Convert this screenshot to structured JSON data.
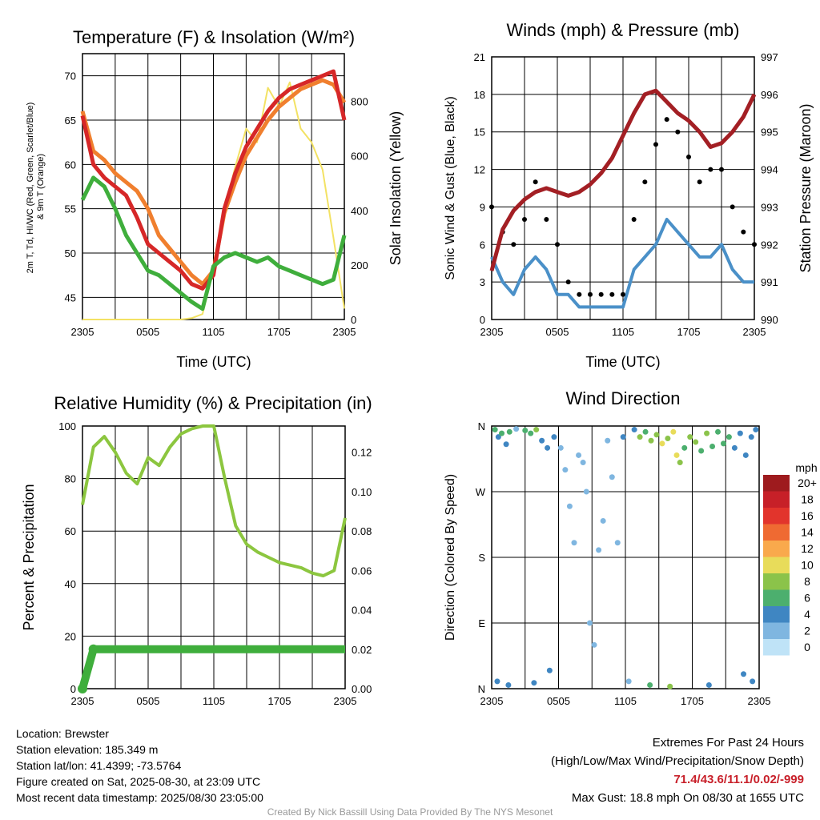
{
  "panels": {
    "temperature": {
      "title": "Temperature (F) & Insolation (W/m²)",
      "ylabel_left_lines": [
        "2m T, Td, HI/WC (Red, Green, Scarlet/Blue)",
        "& 9m T (Orange)"
      ],
      "ylabel_right": "Solar Insolation (Yellow)",
      "xlabel": "Time (UTC)"
    },
    "winds": {
      "title": "Winds (mph) & Pressure (mb)",
      "ylabel_left": "Sonic Wind & Gust (Blue, Black)",
      "ylabel_right": "Station Pressure (Maroon)",
      "xlabel": "Time (UTC)"
    },
    "humidity": {
      "title": "Relative Humidity (%) & Precipitation (in)",
      "ylabel_left": "Percent & Precipitation"
    },
    "direction": {
      "title": "Wind Direction",
      "ylabel_left": "Direction (Colored By Speed)",
      "legend_title": "mph",
      "legend_labels": [
        "20+",
        "18",
        "16",
        "14",
        "12",
        "10",
        "8",
        "6",
        "4",
        "2",
        "0"
      ],
      "legend_colors": [
        "#9e1b1e",
        "#c72028",
        "#e2342c",
        "#ef6a32",
        "#f9a94c",
        "#e8dc5a",
        "#8bc34a",
        "#4caf6e",
        "#3f86c2",
        "#7fb6e0",
        "#bfe3f7"
      ]
    }
  },
  "footer": {
    "location": "Location: Brewster",
    "elevation": "Station elevation: 185.349 m",
    "latlon": "Station lat/lon: 41.4399; -73.5764",
    "created": "Figure created on Sat, 2025-08-30, at 23:09 UTC",
    "recent": "Most recent data timestamp: 2025/08/30 23:05:00",
    "extremes_title": "Extremes For Past 24 Hours",
    "extremes_sub": "(High/Low/Max Wind/Precipitation/Snow Depth)",
    "extremes_values": "71.4/43.6/11.1/0.02/-999",
    "max_gust": "Max Gust: 18.8 mph On 08/30 at 1655 UTC",
    "credit": "Created By Nick Bassill Using Data Provided By The NYS Mesonet"
  },
  "chart_data": [
    {
      "type": "line",
      "title": "Temperature (F) & Insolation (W/m²)",
      "xlabel": "Time (UTC)",
      "ylabel": "2m T, Td, HI/WC (Red, Green, Scarlet/Blue) & 9m T (Orange)",
      "y2label": "Solar Insolation (Yellow)",
      "x_ticks": [
        "2305",
        "0505",
        "1105",
        "1705",
        "2305"
      ],
      "y_ticks": [
        45,
        50,
        55,
        60,
        65,
        70
      ],
      "y2_ticks": [
        0,
        200,
        400,
        600,
        800
      ],
      "ylim": [
        42.5,
        72.5
      ],
      "y2lim": [
        0,
        975
      ],
      "x_hours": [
        0,
        1,
        2,
        3,
        4,
        5,
        6,
        7,
        8,
        9,
        10,
        11,
        12,
        13,
        14,
        15,
        16,
        17,
        18,
        19,
        20,
        21,
        22,
        23,
        24
      ],
      "series": [
        {
          "name": "2m T",
          "color": "#d62728",
          "axis": "left",
          "values": [
            65.5,
            60,
            58.5,
            57.5,
            56.5,
            54,
            51,
            50,
            49,
            48,
            46.5,
            46,
            47.5,
            55,
            59,
            62,
            64,
            66,
            67.5,
            68.5,
            69,
            69.5,
            70,
            70.5,
            65
          ]
        },
        {
          "name": "9m T",
          "color": "#f07f2e",
          "axis": "left",
          "values": [
            66,
            61.5,
            60.5,
            59,
            58,
            57,
            55,
            52,
            50.5,
            49,
            47.5,
            46.5,
            48,
            54.5,
            58,
            61,
            63,
            65,
            66.5,
            67.5,
            68.5,
            69,
            69.5,
            69,
            67
          ]
        },
        {
          "name": "Td",
          "color": "#3fae3c",
          "axis": "left",
          "values": [
            56,
            58.5,
            57.5,
            55,
            52,
            50,
            48,
            47.5,
            46.5,
            45.5,
            44.5,
            43.7,
            48.5,
            49.5,
            50,
            49.5,
            49,
            49.5,
            48.5,
            48,
            47.5,
            47,
            46.5,
            47,
            52
          ]
        },
        {
          "name": "Insolation",
          "color": "#f3e264",
          "axis": "right",
          "values": [
            0,
            0,
            0,
            0,
            0,
            0,
            0,
            0,
            0,
            0,
            5,
            20,
            180,
            400,
            560,
            700,
            650,
            850,
            780,
            870,
            700,
            650,
            550,
            300,
            40
          ]
        }
      ]
    },
    {
      "type": "line",
      "title": "Winds (mph) & Pressure (mb)",
      "xlabel": "Time (UTC)",
      "ylabel": "Sonic Wind & Gust (Blue, Black)",
      "y2label": "Station Pressure (Maroon)",
      "x_ticks": [
        "2305",
        "0505",
        "1105",
        "1705",
        "2305"
      ],
      "y_ticks": [
        0,
        3,
        6,
        9,
        12,
        15,
        18,
        21
      ],
      "y2_ticks": [
        990,
        991,
        992,
        993,
        994,
        995,
        996,
        997
      ],
      "ylim": [
        0,
        21
      ],
      "y2lim": [
        990,
        997
      ],
      "x_hours": [
        0,
        1,
        2,
        3,
        4,
        5,
        6,
        7,
        8,
        9,
        10,
        11,
        12,
        13,
        14,
        15,
        16,
        17,
        18,
        19,
        20,
        21,
        22,
        23,
        24
      ],
      "series": [
        {
          "name": "Sonic Wind",
          "color": "#4a90c8",
          "axis": "left",
          "values": [
            5,
            3,
            2,
            4,
            5,
            4,
            2,
            2,
            1,
            1,
            1,
            1,
            1,
            4,
            5,
            6,
            8,
            7,
            6,
            5,
            5,
            6,
            4,
            3,
            3
          ]
        },
        {
          "name": "Gust",
          "color": "#000000",
          "axis": "left",
          "values": [
            9,
            7,
            6,
            8,
            11,
            8,
            6,
            3,
            2,
            2,
            2,
            2,
            2,
            8,
            11,
            14,
            16,
            15,
            13,
            11,
            12,
            12,
            9,
            7,
            6
          ]
        },
        {
          "name": "Station Pressure",
          "color": "#a31f24",
          "axis": "right",
          "values": [
            991.3,
            992.4,
            992.9,
            993.2,
            993.4,
            993.5,
            993.4,
            993.3,
            993.4,
            993.6,
            993.9,
            994.3,
            994.9,
            995.5,
            996.0,
            996.1,
            995.8,
            995.5,
            995.3,
            995.0,
            994.6,
            994.7,
            995.0,
            995.4,
            996.0
          ]
        }
      ]
    },
    {
      "type": "line",
      "title": "Relative Humidity (%) & Precipitation (in)",
      "ylabel": "Percent & Precipitation",
      "x_ticks": [
        "2305",
        "0505",
        "1105",
        "1705",
        "2305"
      ],
      "y_ticks": [
        0,
        20,
        40,
        60,
        80,
        100
      ],
      "y2_ticks": [
        "0.00",
        "0.02",
        "0.04",
        "0.06",
        "0.08",
        "0.10",
        "0.12"
      ],
      "ylim": [
        0,
        100
      ],
      "y2lim": [
        0,
        0.1333
      ],
      "x_hours": [
        0,
        1,
        2,
        3,
        4,
        5,
        6,
        7,
        8,
        9,
        10,
        11,
        12,
        13,
        14,
        15,
        16,
        17,
        18,
        19,
        20,
        21,
        22,
        23,
        24
      ],
      "series": [
        {
          "name": "Relative Humidity",
          "color": "#8cc63f",
          "axis": "left",
          "values": [
            70,
            92,
            96,
            90,
            82,
            78,
            88,
            85,
            92,
            97,
            99,
            100,
            100,
            80,
            62,
            55,
            52,
            50,
            48,
            47,
            46,
            44,
            43,
            45,
            65
          ]
        },
        {
          "name": "Precipitation",
          "color": "#3fae3c",
          "axis": "right",
          "values": [
            0,
            0.02,
            0.02,
            0.02,
            0.02,
            0.02,
            0.02,
            0.02,
            0.02,
            0.02,
            0.02,
            0.02,
            0.02,
            0.02,
            0.02,
            0.02,
            0.02,
            0.02,
            0.02,
            0.02,
            0.02,
            0.02,
            0.02,
            0.02,
            0.02
          ]
        }
      ]
    },
    {
      "type": "scatter",
      "title": "Wind Direction",
      "ylabel": "Direction (Colored By Speed)",
      "x_ticks": [
        "2305",
        "0505",
        "1105",
        "1705",
        "2305"
      ],
      "y_ticks": [
        "N",
        "E",
        "S",
        "W",
        "N"
      ],
      "ylim": [
        0,
        360
      ],
      "points": [
        {
          "x": 0.3,
          "y": 355,
          "speed": 5
        },
        {
          "x": 0.6,
          "y": 345,
          "speed": 4
        },
        {
          "x": 0.9,
          "y": 350,
          "speed": 5
        },
        {
          "x": 1.3,
          "y": 335,
          "speed": 4
        },
        {
          "x": 1.6,
          "y": 352,
          "speed": 6
        },
        {
          "x": 2.2,
          "y": 356,
          "speed": 2
        },
        {
          "x": 3.0,
          "y": 354,
          "speed": 6
        },
        {
          "x": 3.5,
          "y": 350,
          "speed": 5
        },
        {
          "x": 4.0,
          "y": 355,
          "speed": 7
        },
        {
          "x": 4.5,
          "y": 340,
          "speed": 4
        },
        {
          "x": 5.0,
          "y": 330,
          "speed": 3
        },
        {
          "x": 5.6,
          "y": 345,
          "speed": 4
        },
        {
          "x": 6.2,
          "y": 330,
          "speed": 2
        },
        {
          "x": 6.6,
          "y": 300,
          "speed": 1
        },
        {
          "x": 7.0,
          "y": 250,
          "speed": 1
        },
        {
          "x": 7.4,
          "y": 200,
          "speed": 1
        },
        {
          "x": 7.8,
          "y": 320,
          "speed": 1
        },
        {
          "x": 8.2,
          "y": 310,
          "speed": 1
        },
        {
          "x": 8.5,
          "y": 270,
          "speed": 1
        },
        {
          "x": 8.8,
          "y": 90,
          "speed": 1
        },
        {
          "x": 9.2,
          "y": 60,
          "speed": 1
        },
        {
          "x": 9.6,
          "y": 190,
          "speed": 1
        },
        {
          "x": 10.0,
          "y": 230,
          "speed": 1
        },
        {
          "x": 10.4,
          "y": 340,
          "speed": 2
        },
        {
          "x": 10.8,
          "y": 290,
          "speed": 1
        },
        {
          "x": 11.3,
          "y": 200,
          "speed": 2
        },
        {
          "x": 11.8,
          "y": 345,
          "speed": 3
        },
        {
          "x": 12.3,
          "y": 10,
          "speed": 1
        },
        {
          "x": 12.8,
          "y": 355,
          "speed": 4
        },
        {
          "x": 13.3,
          "y": 345,
          "speed": 7
        },
        {
          "x": 13.8,
          "y": 352,
          "speed": 6
        },
        {
          "x": 14.3,
          "y": 340,
          "speed": 8
        },
        {
          "x": 14.8,
          "y": 348,
          "speed": 7
        },
        {
          "x": 15.3,
          "y": 336,
          "speed": 9
        },
        {
          "x": 15.8,
          "y": 343,
          "speed": 7
        },
        {
          "x": 16.3,
          "y": 352,
          "speed": 9
        },
        {
          "x": 16.6,
          "y": 320,
          "speed": 10
        },
        {
          "x": 16.9,
          "y": 310,
          "speed": 8
        },
        {
          "x": 17.3,
          "y": 330,
          "speed": 6
        },
        {
          "x": 17.8,
          "y": 345,
          "speed": 7
        },
        {
          "x": 18.3,
          "y": 338,
          "speed": 7
        },
        {
          "x": 18.8,
          "y": 326,
          "speed": 6
        },
        {
          "x": 19.3,
          "y": 350,
          "speed": 7
        },
        {
          "x": 19.8,
          "y": 332,
          "speed": 6
        },
        {
          "x": 20.3,
          "y": 352,
          "speed": 5
        },
        {
          "x": 20.8,
          "y": 336,
          "speed": 6
        },
        {
          "x": 21.3,
          "y": 345,
          "speed": 5
        },
        {
          "x": 21.8,
          "y": 330,
          "speed": 4
        },
        {
          "x": 22.3,
          "y": 350,
          "speed": 4
        },
        {
          "x": 22.8,
          "y": 320,
          "speed": 3
        },
        {
          "x": 23.3,
          "y": 345,
          "speed": 4
        },
        {
          "x": 23.7,
          "y": 355,
          "speed": 3
        },
        {
          "x": 0.5,
          "y": 10,
          "speed": 4
        },
        {
          "x": 1.5,
          "y": 5,
          "speed": 3
        },
        {
          "x": 3.8,
          "y": 8,
          "speed": 3
        },
        {
          "x": 5.2,
          "y": 25,
          "speed": 3
        },
        {
          "x": 14.2,
          "y": 5,
          "speed": 6
        },
        {
          "x": 16.0,
          "y": 3,
          "speed": 7
        },
        {
          "x": 19.5,
          "y": 5,
          "speed": 4
        },
        {
          "x": 22.6,
          "y": 20,
          "speed": 4
        },
        {
          "x": 23.4,
          "y": 10,
          "speed": 4
        }
      ]
    }
  ]
}
